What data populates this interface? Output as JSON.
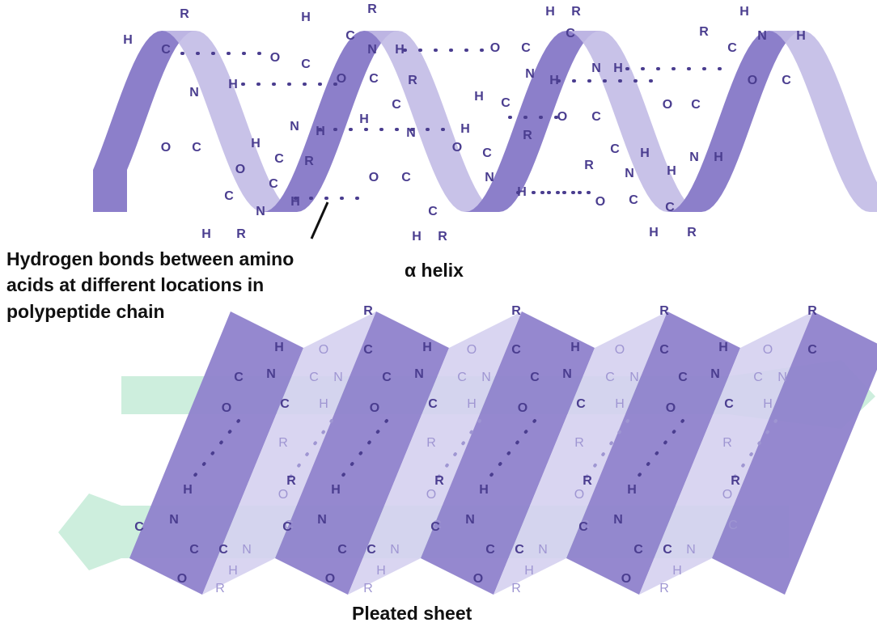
{
  "helix": {
    "label": "α helix",
    "atoms": [
      "R",
      "H",
      "C",
      "N",
      "H",
      "O",
      "C",
      "C",
      "H",
      "R",
      "N",
      "H",
      "O",
      "C",
      "H",
      "C",
      "R",
      "N",
      "H",
      "O",
      "C",
      "O",
      "C",
      "H",
      "C",
      "R",
      "N",
      "H",
      "R",
      "C",
      "H",
      "N",
      "H",
      "H",
      "C",
      "R",
      "O",
      "C",
      "N",
      "H",
      "O",
      "C",
      "C",
      "H",
      "R",
      "O",
      "C",
      "N",
      "H",
      "H",
      "C",
      "R",
      "O",
      "C",
      "N",
      "H",
      "C",
      "H",
      "R",
      "N",
      "H",
      "O",
      "C",
      "C",
      "H",
      "R",
      "N",
      "H",
      "O",
      "C",
      "O",
      "C",
      "H",
      "R",
      "C",
      "N",
      "H"
    ],
    "annotation": [
      "Hydrogen bonds between amino",
      "acids at different locations in",
      "polypeptide chain"
    ]
  },
  "sheet": {
    "label": "Pleated sheet",
    "top_strand_atoms": [
      "H",
      "N",
      "C",
      "O",
      "C",
      "R",
      "O",
      "C",
      "N",
      "H",
      "R",
      "C",
      "H",
      "N",
      "C",
      "O",
      "C",
      "R",
      "O",
      "C",
      "N",
      "H",
      "R",
      "C",
      "H",
      "N",
      "C",
      "O",
      "C",
      "R",
      "O",
      "C",
      "N",
      "H",
      "R",
      "C",
      "H",
      "N",
      "C",
      "O",
      "C",
      "R",
      "O",
      "C",
      "N",
      "H",
      "R",
      "C"
    ],
    "bottom_strand_atoms": [
      "H",
      "N",
      "C",
      "C",
      "O",
      "C",
      "H",
      "N",
      "R",
      "O",
      "R",
      "C",
      "H",
      "N",
      "C",
      "C",
      "O",
      "C",
      "H",
      "N",
      "R",
      "O",
      "R",
      "C",
      "H",
      "N",
      "C",
      "C",
      "O",
      "C",
      "H",
      "N",
      "R",
      "O",
      "R",
      "C",
      "H",
      "N",
      "C",
      "C",
      "O",
      "C",
      "H",
      "N",
      "R",
      "O",
      "R",
      "C"
    ]
  }
}
